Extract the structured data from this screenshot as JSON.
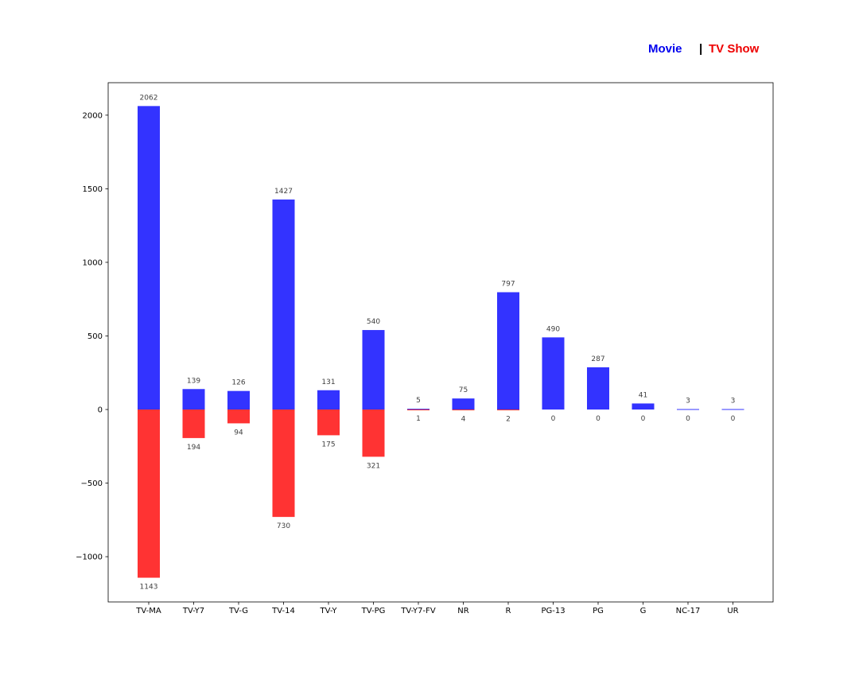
{
  "chart_data": {
    "type": "bar",
    "categories": [
      "TV-MA",
      "TV-Y7",
      "TV-G",
      "TV-14",
      "TV-Y",
      "TV-PG",
      "TV-Y7-FV",
      "NR",
      "R",
      "PG-13",
      "PG",
      "G",
      "NC-17",
      "UR"
    ],
    "series": [
      {
        "name": "Movie",
        "values": [
          2062,
          139,
          126,
          1427,
          131,
          540,
          5,
          75,
          797,
          490,
          287,
          41,
          3,
          3
        ],
        "color": "#3333ff"
      },
      {
        "name": "TV Show",
        "values": [
          -1143,
          -194,
          -94,
          -730,
          -175,
          -321,
          -1,
          -4,
          -2,
          0,
          0,
          0,
          0,
          0
        ],
        "color": "#ff3333"
      }
    ],
    "data_labels": {
      "top": [
        "2062",
        "139",
        "126",
        "1427",
        "131",
        "540",
        "5",
        "75",
        "797",
        "490",
        "287",
        "41",
        "3",
        "3"
      ],
      "bottom": [
        "1143",
        "194",
        "94",
        "730",
        "175",
        "321",
        "1",
        "4",
        "2",
        "0",
        "0",
        "0",
        "0",
        "0"
      ]
    },
    "y_ticks": [
      {
        "value": 2000,
        "label": "2000"
      },
      {
        "value": 1500,
        "label": "1500"
      },
      {
        "value": 1000,
        "label": "1000"
      },
      {
        "value": 500,
        "label": "500"
      },
      {
        "value": 0,
        "label": "0"
      },
      {
        "value": -500,
        "label": "−500"
      },
      {
        "value": -1000,
        "label": "−1000"
      }
    ],
    "ylim": [
      -1310,
      2210
    ],
    "grid": false,
    "title": "",
    "xlabel": "",
    "ylabel": ""
  },
  "legend": {
    "placement": "top-right",
    "movie_label": "Movie",
    "separator": "|",
    "tv_label": "TV Show",
    "movie_color": "#0000ee",
    "tv_color": "#ee0000"
  }
}
